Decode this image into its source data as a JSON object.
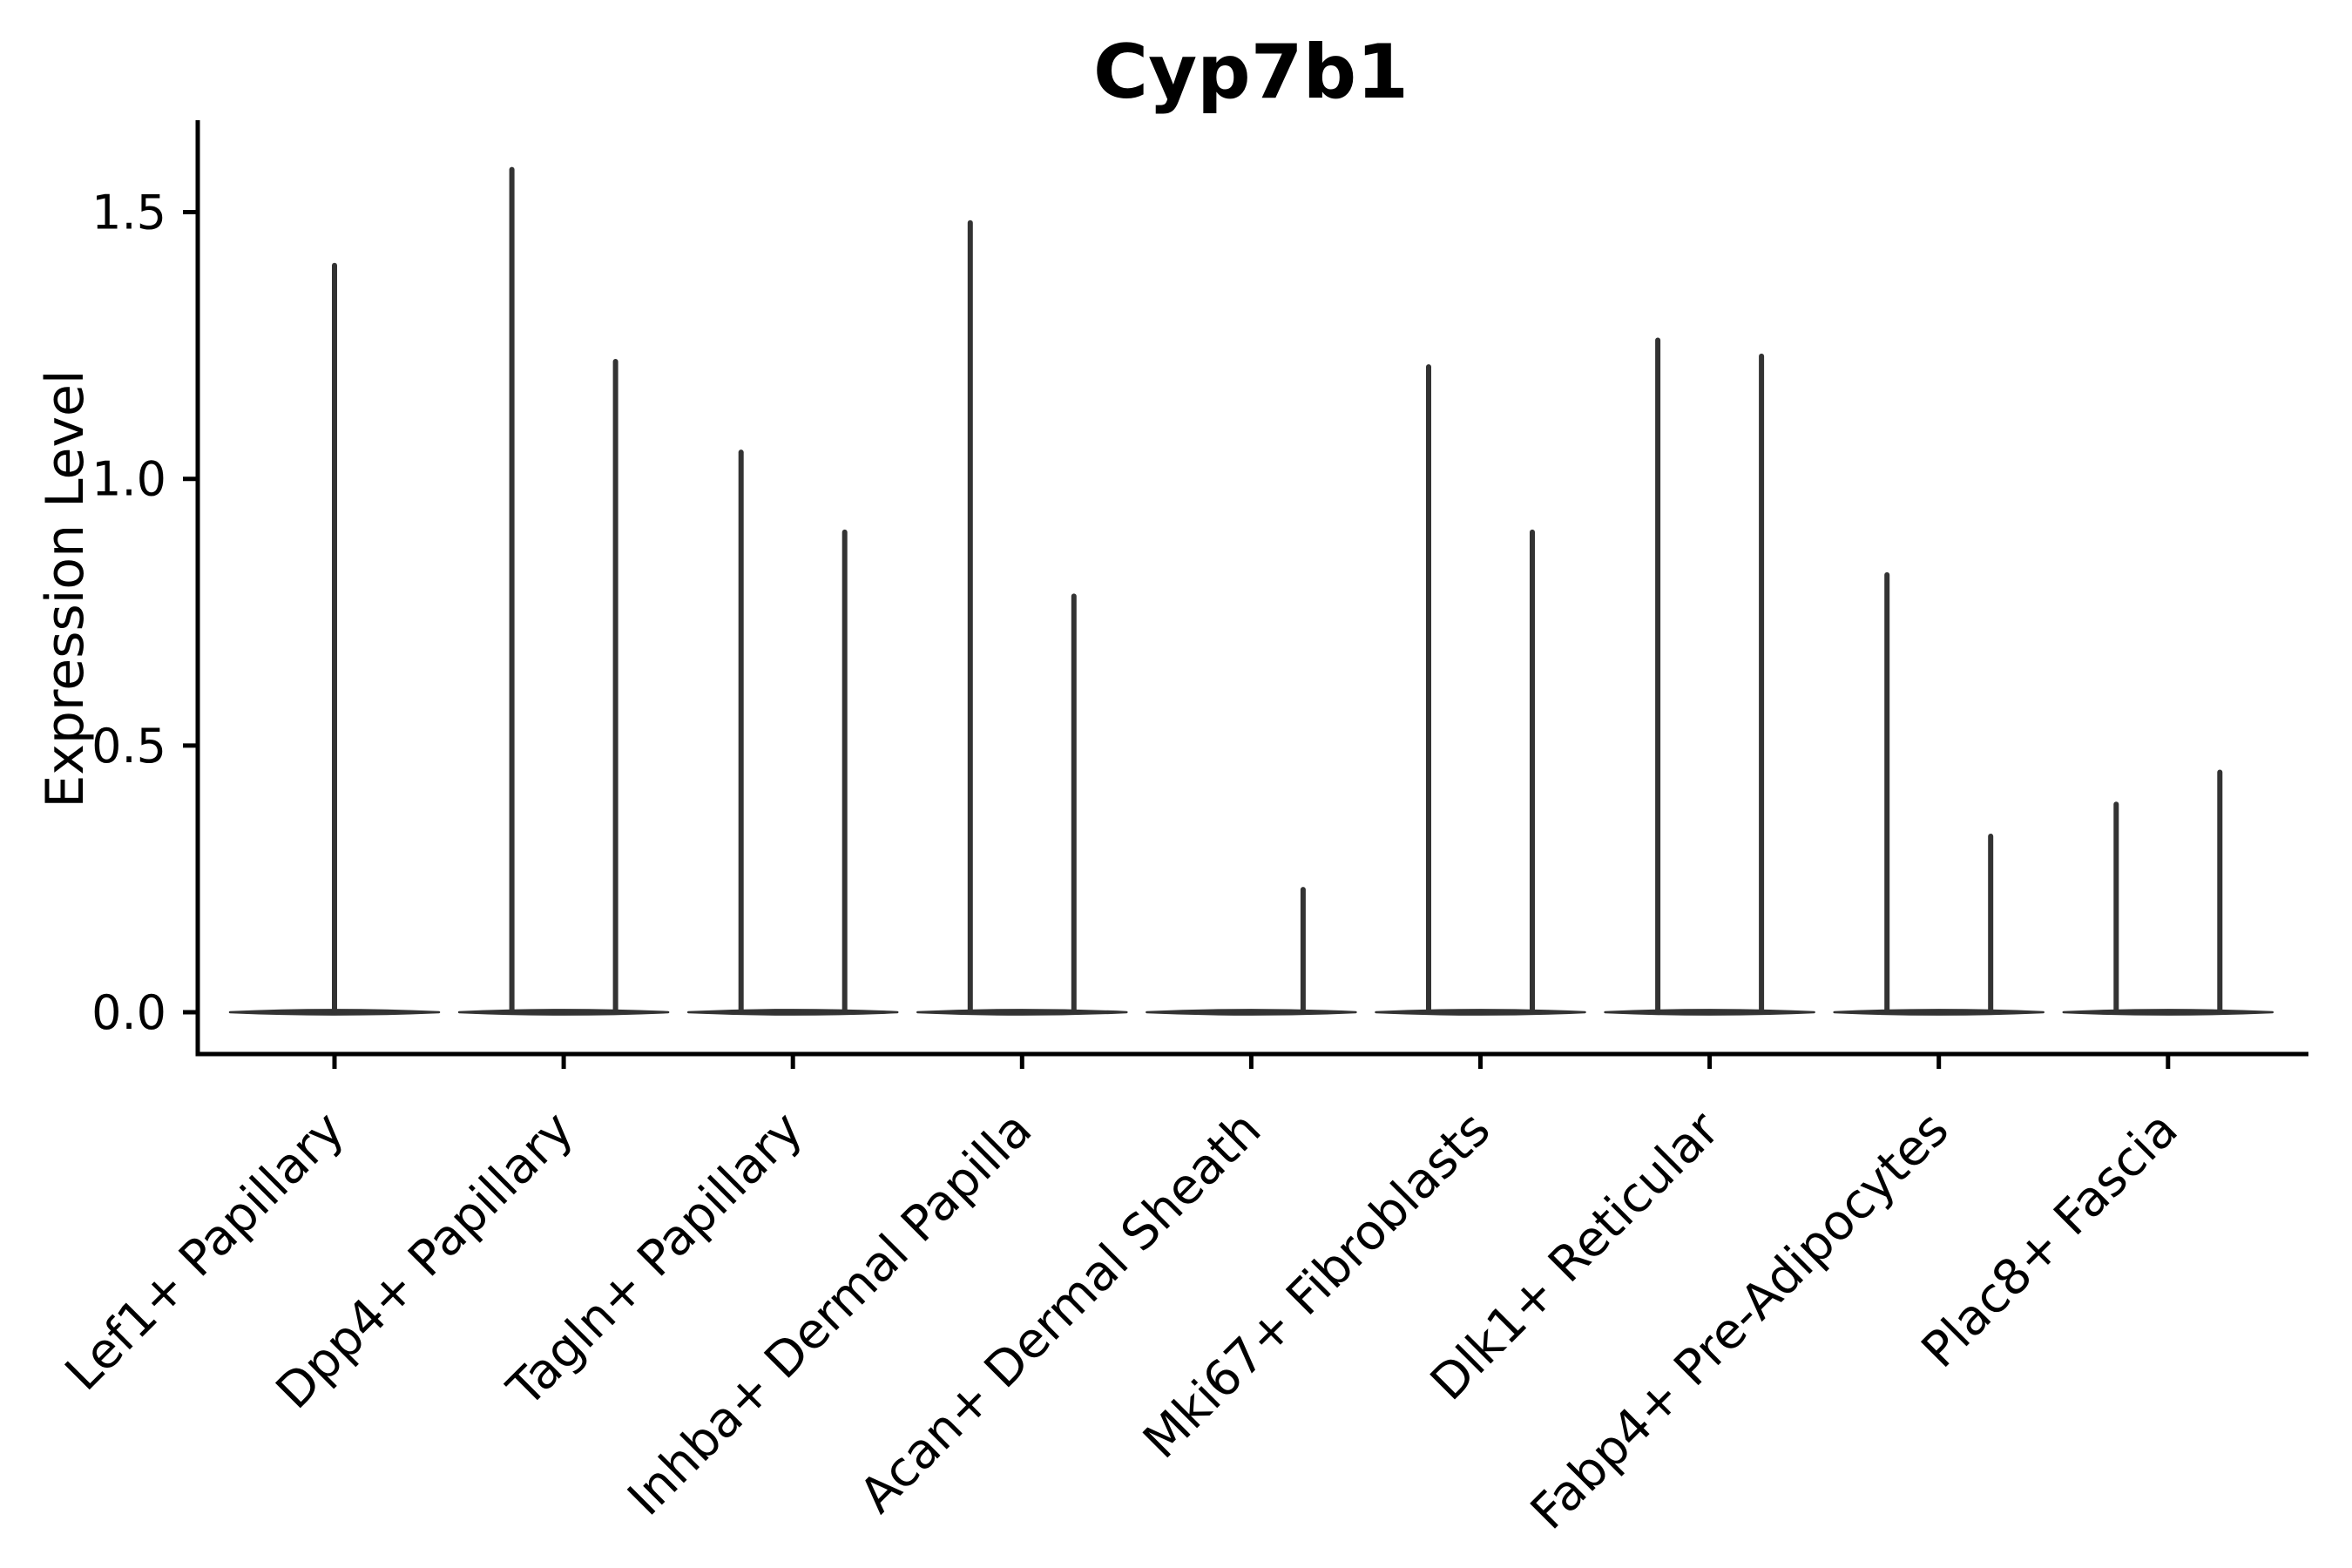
{
  "chart_data": {
    "type": "violin",
    "title": "Cyp7b1",
    "xlabel": "",
    "ylabel": "Expression Level",
    "ylim": [
      -0.08,
      1.67
    ],
    "grid": false,
    "legend": "none",
    "ytick_values": [
      0.0,
      0.5,
      1.0,
      1.5
    ],
    "ytick_labels": [
      "0.0",
      "0.5",
      "1.0",
      "1.5"
    ],
    "categories": [
      "Lef1+ Papillary",
      "Dpp4+ Papillary",
      "Tagln+ Papillary",
      "Inhba+ Dermal Papilla",
      "Acan+ Dermal Sheath",
      "Mki67+ Fibroblasts",
      "Dlk1+ Reticular",
      "Fabp4+ Pre-Adipocytes",
      "Plac8+ Fascia"
    ],
    "violins": [
      {
        "category": "Lef1+ Papillary",
        "distributions": [
          {
            "position": "center",
            "baseline": 0.0,
            "max_expression": 1.4
          }
        ]
      },
      {
        "category": "Dpp4+ Papillary",
        "distributions": [
          {
            "position": "left",
            "baseline": 0.0,
            "max_expression": 1.58
          },
          {
            "position": "right",
            "baseline": 0.0,
            "max_expression": 1.22
          }
        ]
      },
      {
        "category": "Tagln+ Papillary",
        "distributions": [
          {
            "position": "left",
            "baseline": 0.0,
            "max_expression": 1.05
          },
          {
            "position": "right",
            "baseline": 0.0,
            "max_expression": 0.9
          }
        ]
      },
      {
        "category": "Inhba+ Dermal Papilla",
        "distributions": [
          {
            "position": "left",
            "baseline": 0.0,
            "max_expression": 1.48
          },
          {
            "position": "right",
            "baseline": 0.0,
            "max_expression": 0.78
          }
        ]
      },
      {
        "category": "Acan+ Dermal Sheath",
        "distributions": [
          {
            "position": "right",
            "baseline": 0.0,
            "max_expression": 0.23
          }
        ]
      },
      {
        "category": "Mki67+ Fibroblasts",
        "distributions": [
          {
            "position": "left",
            "baseline": 0.0,
            "max_expression": 1.21
          },
          {
            "position": "right",
            "baseline": 0.0,
            "max_expression": 0.9
          }
        ]
      },
      {
        "category": "Dlk1+ Reticular",
        "distributions": [
          {
            "position": "left",
            "baseline": 0.0,
            "max_expression": 1.26
          },
          {
            "position": "right",
            "baseline": 0.0,
            "max_expression": 1.23
          }
        ]
      },
      {
        "category": "Fabp4+ Pre-Adipocytes",
        "distributions": [
          {
            "position": "left",
            "baseline": 0.0,
            "max_expression": 0.82
          },
          {
            "position": "right",
            "baseline": 0.0,
            "max_expression": 0.33
          }
        ]
      },
      {
        "category": "Plac8+ Fascia",
        "distributions": [
          {
            "position": "left",
            "baseline": 0.0,
            "max_expression": 0.39
          },
          {
            "position": "right",
            "baseline": 0.0,
            "max_expression": 0.45
          }
        ]
      }
    ],
    "shape_note": "Each distribution is concentrated at 0 (wide flat base) with a thin vertical tail reaching max_expression"
  },
  "colors": {
    "violin": "#333333",
    "axis": "#000000",
    "text": "#000000",
    "background": "#ffffff"
  }
}
